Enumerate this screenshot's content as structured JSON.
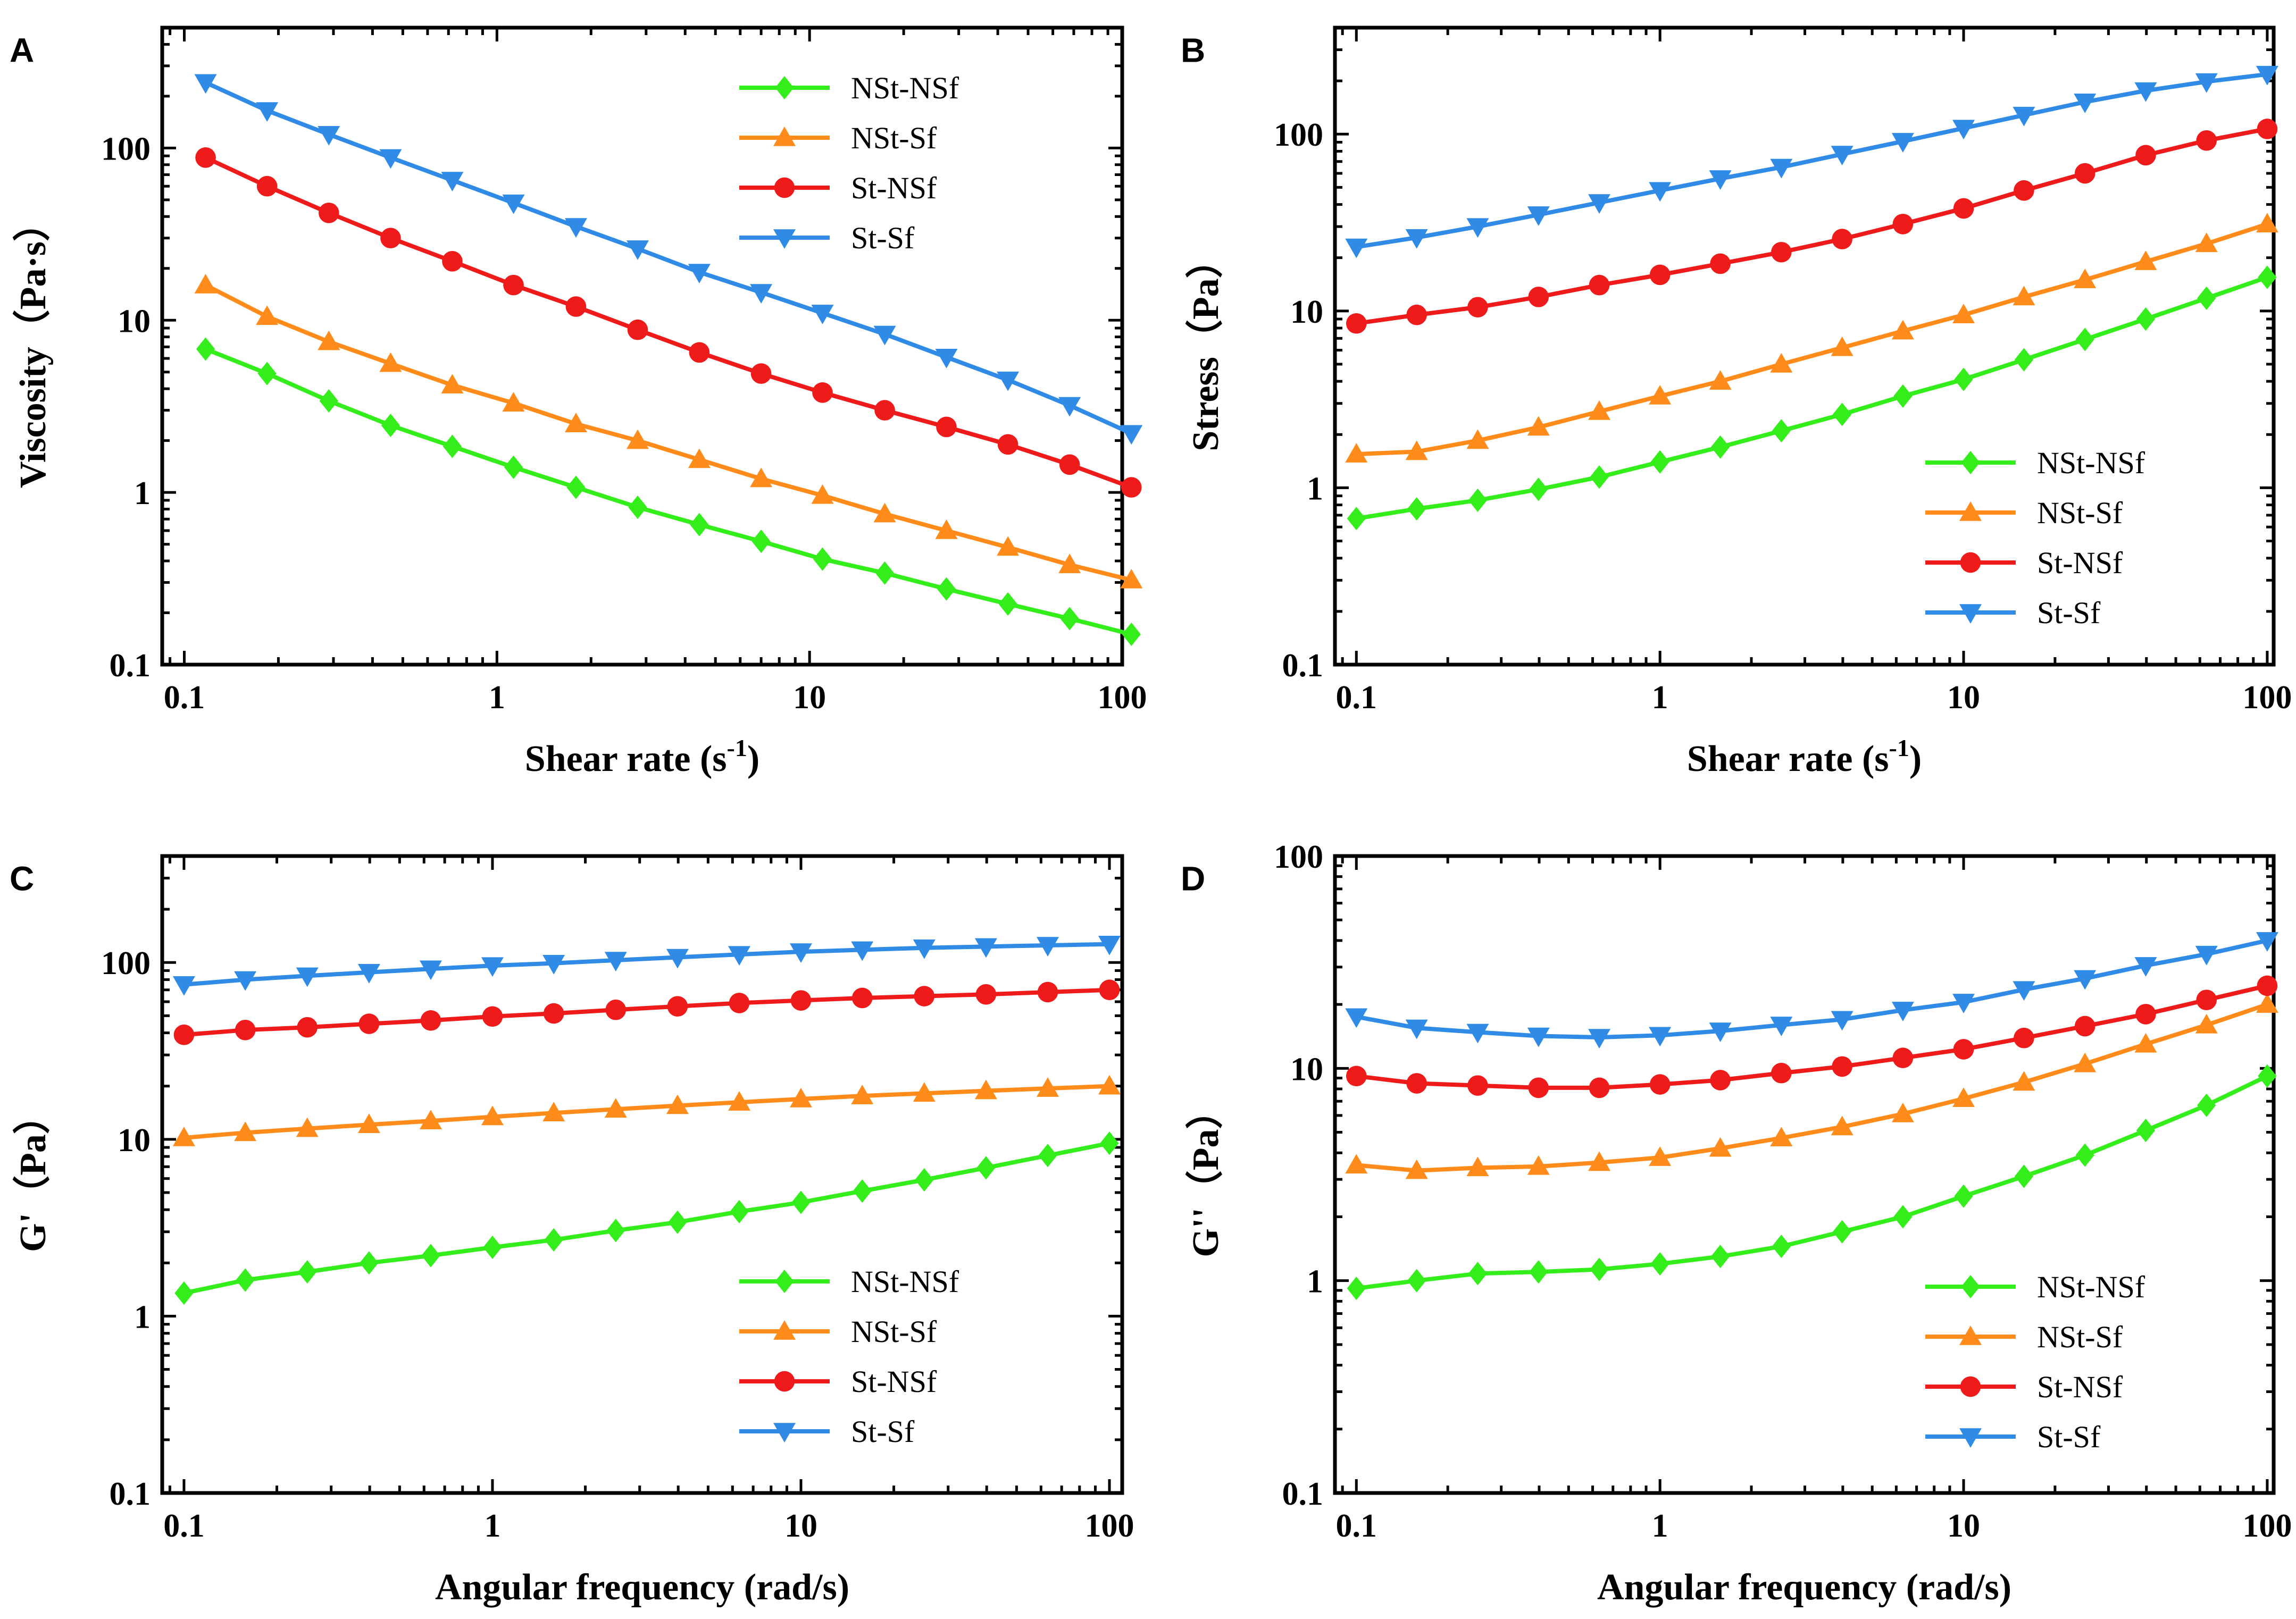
{
  "colors": {
    "NSt-NSf": "#33ee1a",
    "NSt-Sf": "#ff8c1a",
    "St-NSf": "#ef1b1b",
    "St-Sf": "#2f8be6"
  },
  "markers": {
    "NSt-NSf": "diamond",
    "NSt-Sf": "triangle-up",
    "St-NSf": "circle",
    "St-Sf": "triangle-down"
  },
  "chart_data": [
    {
      "panel": "A",
      "type": "line",
      "xlabel": "Shear rate",
      "xlabel_unit": "(s",
      "xlabel_sup": "-1",
      "xlabel_close": ")",
      "ylabel": "Viscosity（Pa·s）",
      "xscale": "log",
      "yscale": "log",
      "xlim": [
        0.085,
        100
      ],
      "ylim": [
        0.1,
        500
      ],
      "xticks": [
        0.1,
        1,
        10,
        100
      ],
      "xtick_labels": [
        "0.1",
        "1",
        "10",
        "100"
      ],
      "yticks": [
        0.1,
        1,
        10,
        100
      ],
      "ytick_labels": [
        "0.1",
        "1",
        "10",
        "100"
      ],
      "legend_position": "top-right",
      "x": [
        0.117,
        0.184,
        0.29,
        0.457,
        0.72,
        1.13,
        1.79,
        2.82,
        4.44,
        7.0,
        11.0,
        17.4,
        27.4,
        43.1,
        67.9,
        107
      ],
      "series": [
        {
          "name": "NSt-NSf",
          "values": [
            6.8,
            4.9,
            3.4,
            2.45,
            1.85,
            1.4,
            1.07,
            0.82,
            0.65,
            0.52,
            0.41,
            0.34,
            0.275,
            0.225,
            0.185,
            0.15
          ]
        },
        {
          "name": "NSt-Sf",
          "values": [
            16,
            10.5,
            7.5,
            5.6,
            4.2,
            3.3,
            2.5,
            2.0,
            1.55,
            1.2,
            0.96,
            0.75,
            0.6,
            0.48,
            0.38,
            0.31
          ]
        },
        {
          "name": "St-NSf",
          "values": [
            88,
            60,
            42,
            30,
            22,
            16,
            12,
            8.8,
            6.5,
            4.9,
            3.8,
            3.0,
            2.4,
            1.9,
            1.45,
            1.07
          ]
        },
        {
          "name": "St-Sf",
          "values": [
            240,
            165,
            120,
            88,
            65,
            48,
            35,
            26,
            19,
            14.5,
            11,
            8.3,
            6.1,
            4.5,
            3.2,
            2.2
          ]
        }
      ]
    },
    {
      "panel": "B",
      "type": "line",
      "xlabel": "Shear rate",
      "xlabel_unit": "(s",
      "xlabel_sup": "-1",
      "xlabel_close": ")",
      "ylabel": "Stress（Pa）",
      "xscale": "log",
      "yscale": "log",
      "xlim": [
        0.085,
        105
      ],
      "ylim": [
        0.1,
        400
      ],
      "xticks": [
        0.1,
        1,
        10,
        100
      ],
      "xtick_labels": [
        "0.1",
        "1",
        "10",
        "100"
      ],
      "yticks": [
        0.1,
        1,
        10,
        100
      ],
      "ytick_labels": [
        "0.1",
        "1",
        "10",
        "100"
      ],
      "legend_position": "bottom-right",
      "x": [
        0.1,
        0.158,
        0.251,
        0.398,
        0.631,
        1.0,
        1.58,
        2.51,
        3.98,
        6.31,
        10,
        15.8,
        25.1,
        39.8,
        63.1,
        100
      ],
      "series": [
        {
          "name": "NSt-NSf",
          "values": [
            0.67,
            0.76,
            0.85,
            0.98,
            1.15,
            1.4,
            1.7,
            2.1,
            2.6,
            3.3,
            4.1,
            5.3,
            6.9,
            9.0,
            11.8,
            15.5
          ]
        },
        {
          "name": "NSt-Sf",
          "values": [
            1.55,
            1.6,
            1.85,
            2.2,
            2.7,
            3.3,
            4.0,
            5.0,
            6.2,
            7.7,
            9.5,
            12.0,
            15.0,
            19.0,
            24.0,
            31.0
          ]
        },
        {
          "name": "St-NSf",
          "values": [
            8.5,
            9.5,
            10.5,
            12,
            14,
            16,
            18.5,
            21.5,
            25.5,
            31,
            38,
            48,
            60,
            76,
            92,
            107
          ]
        },
        {
          "name": "St-Sf",
          "values": [
            23,
            26,
            30,
            35,
            41,
            48,
            56,
            65,
            77,
            91,
            108,
            128,
            152,
            176,
            198,
            218
          ]
        }
      ]
    },
    {
      "panel": "C",
      "type": "line",
      "xlabel": "Angular frequency (rad/s)",
      "ylabel": "G'（Pa）",
      "xscale": "log",
      "yscale": "log",
      "xlim": [
        0.085,
        110
      ],
      "ylim": [
        0.1,
        400
      ],
      "xticks": [
        0.1,
        1,
        10,
        100
      ],
      "xtick_labels": [
        "0.1",
        "1",
        "10",
        "100"
      ],
      "yticks": [
        0.1,
        1,
        10,
        100
      ],
      "ytick_labels": [
        "0.1",
        "1",
        "10",
        "100"
      ],
      "legend_position": "bottom-right",
      "x": [
        0.1,
        0.158,
        0.251,
        0.398,
        0.631,
        1.0,
        1.58,
        2.51,
        3.98,
        6.31,
        10,
        15.8,
        25.1,
        39.8,
        63.1,
        100
      ],
      "series": [
        {
          "name": "NSt-NSf",
          "values": [
            1.35,
            1.6,
            1.78,
            2.0,
            2.2,
            2.45,
            2.7,
            3.05,
            3.4,
            3.9,
            4.4,
            5.1,
            5.9,
            6.9,
            8.1,
            9.5
          ]
        },
        {
          "name": "NSt-Sf",
          "values": [
            10.2,
            10.9,
            11.5,
            12.1,
            12.7,
            13.4,
            14.1,
            14.8,
            15.5,
            16.2,
            16.9,
            17.6,
            18.2,
            18.8,
            19.4,
            20.0
          ]
        },
        {
          "name": "St-NSf",
          "values": [
            39,
            41.5,
            43,
            45,
            47,
            49.5,
            51.5,
            54,
            56.5,
            59,
            61,
            63,
            64.5,
            66,
            68,
            70
          ]
        },
        {
          "name": "St-Sf",
          "values": [
            75,
            80,
            84,
            88,
            92,
            96,
            99,
            103,
            107,
            111,
            115,
            118,
            121,
            123,
            125,
            127
          ]
        }
      ]
    },
    {
      "panel": "D",
      "type": "line",
      "xlabel": "Angular frequency (rad/s)",
      "ylabel": "G''（Pa）",
      "xscale": "log",
      "yscale": "log",
      "xlim": [
        0.085,
        105
      ],
      "ylim": [
        0.1,
        100
      ],
      "xticks": [
        0.1,
        1,
        10,
        100
      ],
      "xtick_labels": [
        "0.1",
        "1",
        "10",
        "100"
      ],
      "yticks": [
        0.1,
        1,
        10,
        100
      ],
      "ytick_labels": [
        "0.1",
        "1",
        "10",
        "100"
      ],
      "legend_position": "bottom-right",
      "x": [
        0.1,
        0.158,
        0.251,
        0.398,
        0.631,
        1.0,
        1.58,
        2.51,
        3.98,
        6.31,
        10,
        15.8,
        25.1,
        39.8,
        63.1,
        100
      ],
      "series": [
        {
          "name": "NSt-NSf",
          "values": [
            0.92,
            1.0,
            1.08,
            1.1,
            1.13,
            1.2,
            1.3,
            1.45,
            1.7,
            2.0,
            2.5,
            3.1,
            3.9,
            5.1,
            6.7,
            9.2
          ]
        },
        {
          "name": "NSt-Sf",
          "values": [
            3.5,
            3.3,
            3.4,
            3.45,
            3.6,
            3.8,
            4.2,
            4.7,
            5.3,
            6.1,
            7.2,
            8.6,
            10.5,
            13,
            16,
            20
          ]
        },
        {
          "name": "St-NSf",
          "values": [
            9.2,
            8.5,
            8.3,
            8.1,
            8.1,
            8.4,
            8.8,
            9.5,
            10.2,
            11.2,
            12.3,
            13.9,
            15.8,
            18,
            21,
            24.5
          ]
        },
        {
          "name": "St-Sf",
          "values": [
            17.5,
            15.5,
            14.8,
            14.2,
            14.0,
            14.3,
            15.0,
            16.0,
            17.0,
            18.8,
            20.5,
            23.5,
            26.5,
            30.5,
            34.5,
            40
          ]
        }
      ]
    }
  ]
}
